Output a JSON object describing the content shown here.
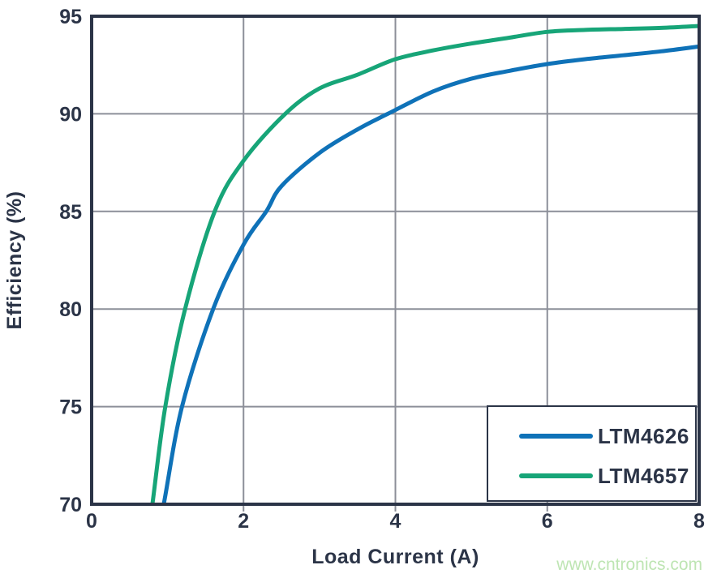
{
  "watermark": "www.cntronics.com",
  "colors": {
    "background": "#FFFFFF",
    "axis": "#2B3447",
    "grid": "#8C8F99",
    "tick": "#8C8F99",
    "series_blue": "#0F72B8",
    "series_green": "#17A578",
    "legend_border": "#2B3447",
    "legend_fill": "#FFFFFF",
    "watermark": "#BEE5B3"
  },
  "chart_data": {
    "type": "line",
    "xlabel": "Load Current (A)",
    "ylabel": "Efficiency (%)",
    "xlim": [
      0,
      8
    ],
    "ylim": [
      70,
      95
    ],
    "x_ticks": [
      0,
      2,
      4,
      6,
      8
    ],
    "y_ticks": [
      70,
      75,
      80,
      85,
      90,
      95
    ],
    "grid": true,
    "legend_position": "bottom-right",
    "series": [
      {
        "name": "LTM4626",
        "color": "#0F72B8",
        "points": [
          [
            0.95,
            70.0
          ],
          [
            1.19,
            75.0
          ],
          [
            1.6,
            80.0
          ],
          [
            2.0,
            83.3
          ],
          [
            2.3,
            85.0
          ],
          [
            2.5,
            86.3
          ],
          [
            3.0,
            88.0
          ],
          [
            3.5,
            89.2
          ],
          [
            3.9,
            90.0
          ],
          [
            4.5,
            91.15
          ],
          [
            5.0,
            91.8
          ],
          [
            5.5,
            92.2
          ],
          [
            6.0,
            92.55
          ],
          [
            6.5,
            92.8
          ],
          [
            7.0,
            93.0
          ],
          [
            7.5,
            93.2
          ],
          [
            8.0,
            93.45
          ]
        ]
      },
      {
        "name": "LTM4657",
        "color": "#17A578",
        "points": [
          [
            0.8,
            70.0
          ],
          [
            0.97,
            75.0
          ],
          [
            1.23,
            80.0
          ],
          [
            1.62,
            85.0
          ],
          [
            2.0,
            87.6
          ],
          [
            2.55,
            90.0
          ],
          [
            3.0,
            91.3
          ],
          [
            3.5,
            92.0
          ],
          [
            4.0,
            92.8
          ],
          [
            4.5,
            93.25
          ],
          [
            5.0,
            93.6
          ],
          [
            5.5,
            93.9
          ],
          [
            6.0,
            94.2
          ],
          [
            6.5,
            94.3
          ],
          [
            7.0,
            94.35
          ],
          [
            7.5,
            94.4
          ],
          [
            8.0,
            94.5
          ]
        ]
      }
    ]
  }
}
